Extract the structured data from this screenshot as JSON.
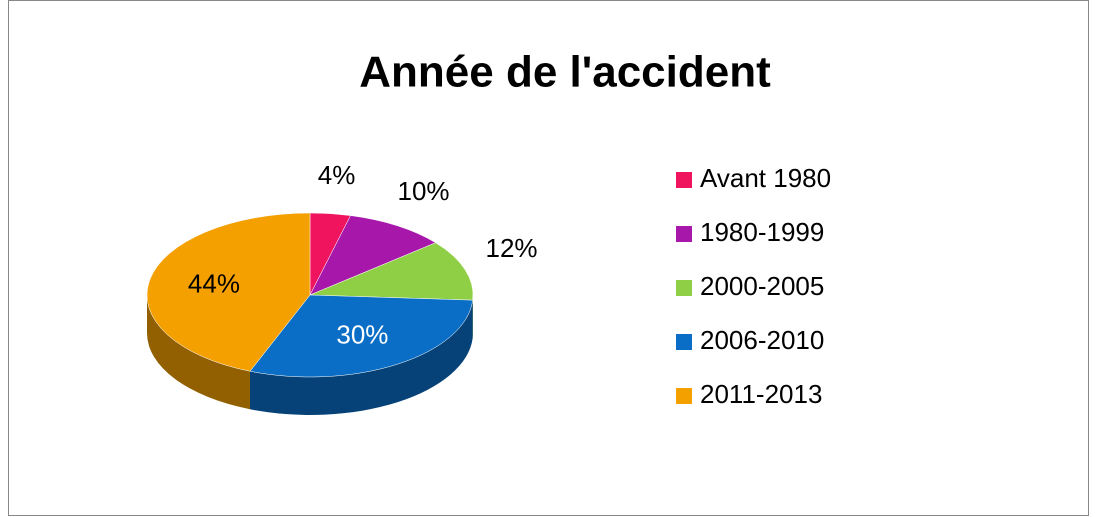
{
  "chart_data": {
    "type": "pie",
    "title": "Année de l'accident",
    "categories": [
      "Avant 1980",
      "1980-1999",
      "2000-2005",
      "2006-2010",
      "2011-2013"
    ],
    "values": [
      4,
      10,
      12,
      30,
      44
    ],
    "value_labels": [
      "4%",
      "10%",
      "12%",
      "30%",
      "44%"
    ],
    "colors": [
      "#f0135e",
      "#a617aa",
      "#8fcf45",
      "#0a6ec6",
      "#f4a000"
    ],
    "legend": "right"
  }
}
